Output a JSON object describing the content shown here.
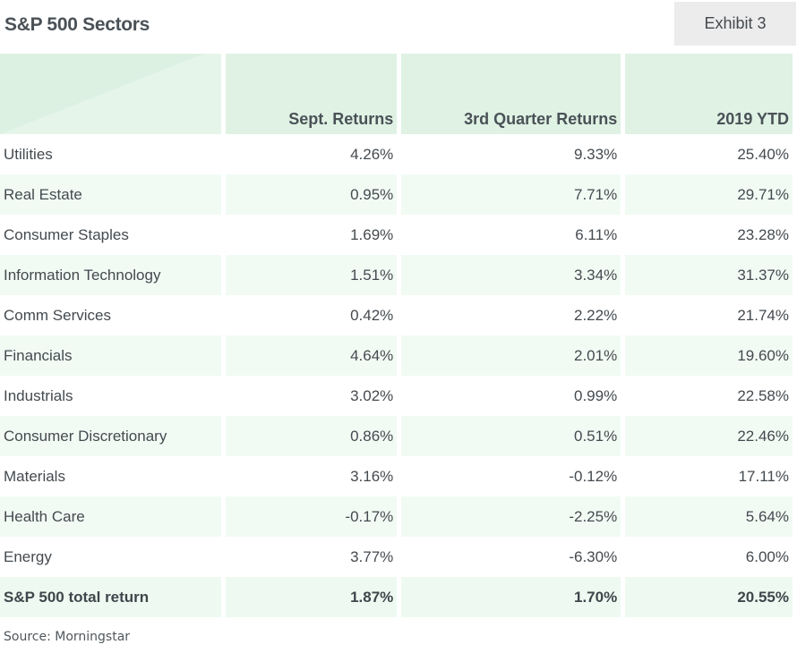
{
  "title": "S&P 500 Sectors",
  "exhibit_label": "Exhibit 3",
  "source": "Source: Morningstar",
  "colors": {
    "header_bg": "#dff2e4",
    "alt_row_bg": "#f1fbf4",
    "exhibit_bg": "#ececec",
    "text": "#444a4f"
  },
  "chart_data": {
    "type": "table",
    "title": "S&P 500 Sectors",
    "columns": [
      "",
      "Sept. Returns",
      "3rd Quarter Returns",
      "2019 YTD"
    ],
    "rows": [
      {
        "sector": "Utilities",
        "sept": "4.26%",
        "q3": "9.33%",
        "ytd": "25.40%"
      },
      {
        "sector": "Real Estate",
        "sept": "0.95%",
        "q3": "7.71%",
        "ytd": "29.71%"
      },
      {
        "sector": "Consumer Staples",
        "sept": "1.69%",
        "q3": "6.11%",
        "ytd": "23.28%"
      },
      {
        "sector": "Information Technology",
        "sept": "1.51%",
        "q3": "3.34%",
        "ytd": "31.37%"
      },
      {
        "sector": "Comm Services",
        "sept": "0.42%",
        "q3": "2.22%",
        "ytd": "21.74%"
      },
      {
        "sector": "Financials",
        "sept": "4.64%",
        "q3": "2.01%",
        "ytd": "19.60%"
      },
      {
        "sector": "Industrials",
        "sept": "3.02%",
        "q3": "0.99%",
        "ytd": "22.58%"
      },
      {
        "sector": "Consumer Discretionary",
        "sept": "0.86%",
        "q3": "0.51%",
        "ytd": "22.46%"
      },
      {
        "sector": "Materials",
        "sept": "3.16%",
        "q3": "-0.12%",
        "ytd": "17.11%"
      },
      {
        "sector": "Health Care",
        "sept": "-0.17%",
        "q3": "-2.25%",
        "ytd": "5.64%"
      },
      {
        "sector": "Energy",
        "sept": "3.77%",
        "q3": "-6.30%",
        "ytd": "6.00%"
      }
    ],
    "total": {
      "sector": "S&P 500 total return",
      "sept": "1.87%",
      "q3": "1.70%",
      "ytd": "20.55%"
    }
  }
}
